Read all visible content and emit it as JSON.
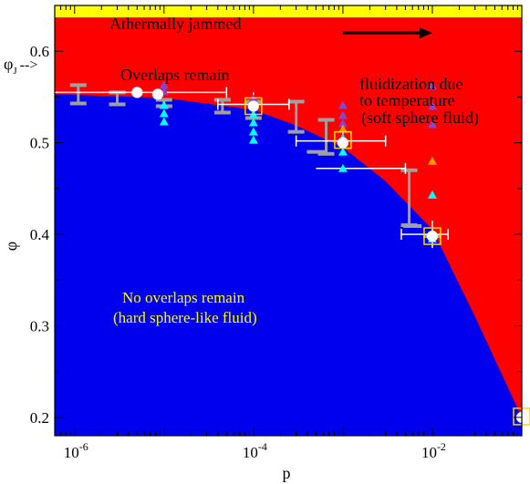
{
  "chart_data": {
    "type": "scatter",
    "title": "",
    "xlabel": "p",
    "ylabel": "φ",
    "x_scale": "log",
    "xlim": [
      6e-07,
      0.1
    ],
    "ylim": [
      0.18,
      0.65
    ],
    "x_ticks": [
      {
        "value": 1e-06,
        "base": "10",
        "exp": "-6"
      },
      {
        "value": 0.0001,
        "base": "10",
        "exp": "-4"
      },
      {
        "value": 0.01,
        "base": "10",
        "exp": "-2"
      }
    ],
    "y_ticks": [
      {
        "value": 0.2,
        "label": "0.2"
      },
      {
        "value": 0.3,
        "label": "0.3"
      },
      {
        "value": 0.4,
        "label": "0.4"
      },
      {
        "value": 0.5,
        "label": "0.5"
      },
      {
        "value": 0.6,
        "label": "0.6"
      }
    ],
    "phi_j": {
      "value": 0.637,
      "label_main": "φ",
      "label_sub": "J",
      "label_arrow": "-->"
    },
    "regions": {
      "jammed": {
        "label": "Athermally jammed",
        "color": "#ffff00"
      },
      "overlaps": {
        "label": "Overlaps remain",
        "color": "#ff0000"
      },
      "no_overlaps": {
        "label_line1": "No overlaps remain",
        "label_line2": "(hard sphere-like fluid)",
        "color": "#0000ee"
      },
      "boundary": [
        [
          6e-07,
          0.553
        ],
        [
          1e-05,
          0.549
        ],
        [
          0.0001,
          0.536
        ],
        [
          0.0003,
          0.519
        ],
        [
          0.001,
          0.495
        ],
        [
          0.003,
          0.458
        ],
        [
          0.01,
          0.405
        ],
        [
          0.03,
          0.31
        ],
        [
          0.1,
          0.2
        ]
      ]
    },
    "annotation": {
      "line1": "fluidization due",
      "line2": "to temperature",
      "line3": "(soft sphere fluid)",
      "arrow_from": [
        0.001,
        0.62
      ],
      "arrow_to": [
        0.01,
        0.62
      ]
    },
    "series": [
      {
        "marker": "gray-error-bar",
        "color": "#a0a0a0",
        "points": [
          {
            "x": 1.1e-06,
            "y": 0.553,
            "ylow": 0.543,
            "yhigh": 0.563
          },
          {
            "x": 3e-06,
            "y": 0.548,
            "ylow": 0.542,
            "yhigh": 0.555
          },
          {
            "x": 1e-05,
            "y": 0.543,
            "ylow": 0.54,
            "yhigh": 0.547
          },
          {
            "x": 4.5e-05,
            "y": 0.54,
            "ylow": 0.533,
            "yhigh": 0.547
          },
          {
            "x": 0.0001,
            "y": 0.535,
            "ylow": 0.527,
            "yhigh": 0.545
          },
          {
            "x": 0.0003,
            "y": 0.53,
            "ylow": 0.512,
            "yhigh": 0.545
          },
          {
            "x": 0.00065,
            "y": 0.505,
            "ylow": 0.488,
            "yhigh": 0.525
          },
          {
            "x": 0.0055,
            "y": 0.44,
            "ylow": 0.41,
            "yhigh": 0.47
          }
        ]
      },
      {
        "marker": "gray-cap",
        "color": "#a0a0a0",
        "points": [
          {
            "x": 0.0005,
            "y": 0.49
          },
          {
            "x": 0.006,
            "y": 0.409
          },
          {
            "x": 0.01,
            "y": 0.398
          }
        ]
      },
      {
        "marker": "white-errorbar",
        "color": "#ffffff",
        "points": [
          {
            "x": 0.0001,
            "y": 0.542,
            "xlow": 4e-05,
            "xhigh": 0.00025,
            "ylow": 0.527,
            "yhigh": 0.555
          },
          {
            "x": 0.001,
            "y": 0.502,
            "xlow": 0.0003,
            "xhigh": 0.003,
            "ylow": 0.487,
            "yhigh": 0.517
          },
          {
            "x": 0.01,
            "y": 0.4,
            "xlow": 0.0045,
            "xhigh": 0.015,
            "ylow": 0.385,
            "yhigh": 0.415
          }
        ]
      },
      {
        "marker": "white-hline",
        "color": "#ffffff",
        "points": [
          {
            "x": 4e-06,
            "y": 0.555,
            "xlow": 6e-07,
            "xhigh": 5e-05
          },
          {
            "x": 0.001,
            "y": 0.472,
            "xlow": 0.0005,
            "xhigh": 0.005
          }
        ]
      },
      {
        "marker": "white-circle",
        "color": "#ffffff",
        "points": [
          {
            "x": 5e-06,
            "y": 0.555
          },
          {
            "x": 8.5e-06,
            "y": 0.553
          },
          {
            "x": 0.0001,
            "y": 0.54
          },
          {
            "x": 0.001,
            "y": 0.5
          },
          {
            "x": 0.01,
            "y": 0.398
          },
          {
            "x": 0.1,
            "y": 0.2
          }
        ]
      },
      {
        "marker": "yellow-square",
        "color": "#ffd700",
        "points": [
          {
            "x": 0.0001,
            "y": 0.54
          },
          {
            "x": 0.001,
            "y": 0.503
          },
          {
            "x": 0.01,
            "y": 0.398
          },
          {
            "x": 0.1,
            "y": 0.201
          }
        ]
      },
      {
        "marker": "cyan-triangle",
        "color": "#00ffff",
        "points": [
          {
            "x": 1e-05,
            "y": 0.523
          },
          {
            "x": 1e-05,
            "y": 0.532
          },
          {
            "x": 1e-05,
            "y": 0.541
          },
          {
            "x": 0.0001,
            "y": 0.503
          },
          {
            "x": 0.0001,
            "y": 0.512
          },
          {
            "x": 0.0001,
            "y": 0.522
          },
          {
            "x": 0.0001,
            "y": 0.531
          },
          {
            "x": 0.001,
            "y": 0.472
          },
          {
            "x": 0.001,
            "y": 0.49
          },
          {
            "x": 0.001,
            "y": 0.505
          },
          {
            "x": 0.01,
            "y": 0.443
          },
          {
            "x": 0.01,
            "y": 0.395
          }
        ]
      },
      {
        "marker": "purple-triangle",
        "color": "#8844cc",
        "points": [
          {
            "x": 1e-05,
            "y": 0.556
          },
          {
            "x": 1e-05,
            "y": 0.563
          },
          {
            "x": 0.0001,
            "y": 0.548
          },
          {
            "x": 0.001,
            "y": 0.521
          },
          {
            "x": 0.001,
            "y": 0.53
          },
          {
            "x": 0.001,
            "y": 0.541
          },
          {
            "x": 0.01,
            "y": 0.52
          },
          {
            "x": 0.01,
            "y": 0.54
          },
          {
            "x": 0.01,
            "y": 0.562
          }
        ]
      },
      {
        "marker": "orange-triangle",
        "color": "#ff9900",
        "points": [
          {
            "x": 0.0001,
            "y": 0.541
          },
          {
            "x": 0.001,
            "y": 0.515
          },
          {
            "x": 0.01,
            "y": 0.48
          }
        ]
      }
    ]
  }
}
